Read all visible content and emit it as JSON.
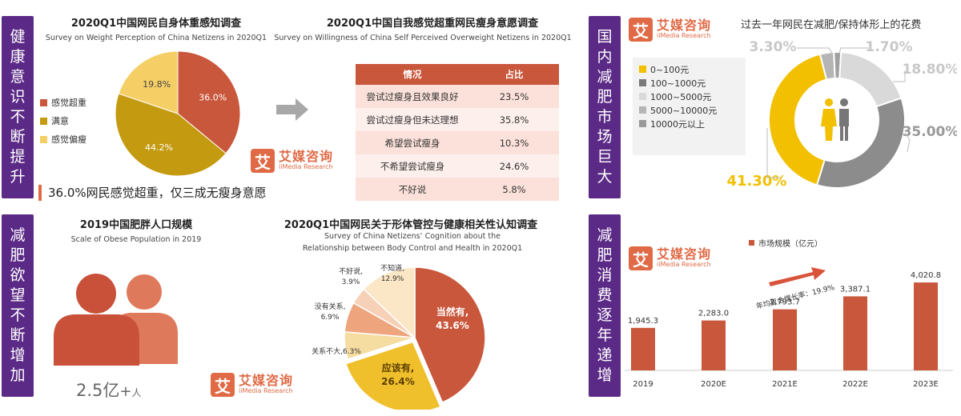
{
  "sidebars": {
    "health_awareness": "健康意识不断提升",
    "weight_loss_desire": "减肥欲望不断增加",
    "market_size": "国内减肥市场巨大",
    "consumption": "减肥消费逐年递增"
  },
  "logo": {
    "cn": "艾媒咨询",
    "en": "iiMedia Research",
    "mark": "艾"
  },
  "panel1": {
    "title": "2020Q1中国网民自身体重感知调查",
    "subtitle": "Survey on Weight Perception of China Netizens in 2020Q1",
    "note": "36.0%网民感觉超重，仅三成无瘦身意愿",
    "colors": {
      "overweight": "#c9573c",
      "satisfied": "#c49a10",
      "underweight": "#f5cf66"
    }
  },
  "panel2": {
    "title": "2020Q1中国自我感觉超重网民瘦身意愿调查",
    "subtitle": "Survey on Willingness of China Self Perceived Overweight Netizens in 2020Q1",
    "headers": [
      "情况",
      "占比"
    ],
    "rows": [
      [
        "尝试过瘦身且效果良好",
        "23.5%"
      ],
      [
        "尝试过瘦身但未达理想",
        "35.8%"
      ],
      [
        "希望尝试瘦身",
        "10.3%"
      ],
      [
        "不希望尝试瘦身",
        "24.6%"
      ],
      [
        "不好说",
        "5.8%"
      ]
    ]
  },
  "panel3": {
    "title": "2019中国肥胖人口规模",
    "subtitle": "Scale of Obese Population in 2019",
    "value": "2.5亿",
    "plus": "+",
    "unit": "人"
  },
  "panel4": {
    "title": "2020Q1中国网民关于形体管控与健康相关性认知调查",
    "subtitle1": "Survey of China Netizens’ Cognition about the",
    "subtitle2": "Relationship between Body Control and Health in 2020Q1"
  },
  "panel5": {
    "title": "过去一年网民在减肥/保持体形上的花费",
    "labels": {
      "p1": "3.30%",
      "p2": "1.70%",
      "p3": "18.80%",
      "p4": "35.00%",
      "p5": "41.30%"
    }
  },
  "panel6": {
    "growth_label": "年均复合增长率：19.9%"
  },
  "chart_data": [
    {
      "type": "pie",
      "categories": [
        "感觉超重",
        "满意",
        "感觉偏瘦"
      ],
      "values": [
        36.0,
        44.2,
        19.8
      ],
      "labels": [
        "36.0%",
        "44.2%",
        "19.8%"
      ],
      "colors": [
        "#c9573c",
        "#c49a10",
        "#f5cf66"
      ],
      "legend": "left"
    },
    {
      "type": "pie",
      "categories": [
        "当然有,",
        "应该有,",
        "关系不大,",
        "没有关系,",
        "不好说,",
        "不知道,"
      ],
      "values": [
        43.6,
        26.4,
        6.3,
        6.9,
        3.9,
        12.9
      ],
      "labels": [
        "43.6%",
        "26.4%",
        "6.3%",
        "6.9%",
        "3.9%",
        "12.9%"
      ],
      "colors": [
        "#c9573c",
        "#f0c02c",
        "#f5dca0",
        "#eea47c",
        "#f7d0b8",
        "#fbe6c6"
      ]
    },
    {
      "type": "pie",
      "categories": [
        "0~100元",
        "100~1000元",
        "1000~5000元",
        "5000~10000元",
        "10000元以上"
      ],
      "values": [
        41.3,
        35.0,
        18.8,
        3.3,
        1.7
      ],
      "labels": [
        "41.30%",
        "35.00%",
        "18.80%",
        "3.30%",
        "1.70%"
      ],
      "colors": [
        "#f2c000",
        "#8c8c8c",
        "#d9d9d9",
        "#b5b5b5",
        "#a0a0a0"
      ],
      "legend": "left"
    },
    {
      "type": "bar",
      "title": "",
      "series": [
        {
          "name": "市场规模（亿元）",
          "values": [
            1945.3,
            2283.0,
            2793.7,
            3387.1,
            4020.8
          ]
        }
      ],
      "categories": [
        "2019",
        "2020E",
        "2021E",
        "2022E",
        "2023E"
      ],
      "labels": [
        "1,945.3",
        "2,283.0",
        "2,793.7",
        "3,387.1",
        "4,020.8"
      ],
      "color": "#c9573c",
      "ylim": [
        0,
        4500
      ]
    }
  ]
}
